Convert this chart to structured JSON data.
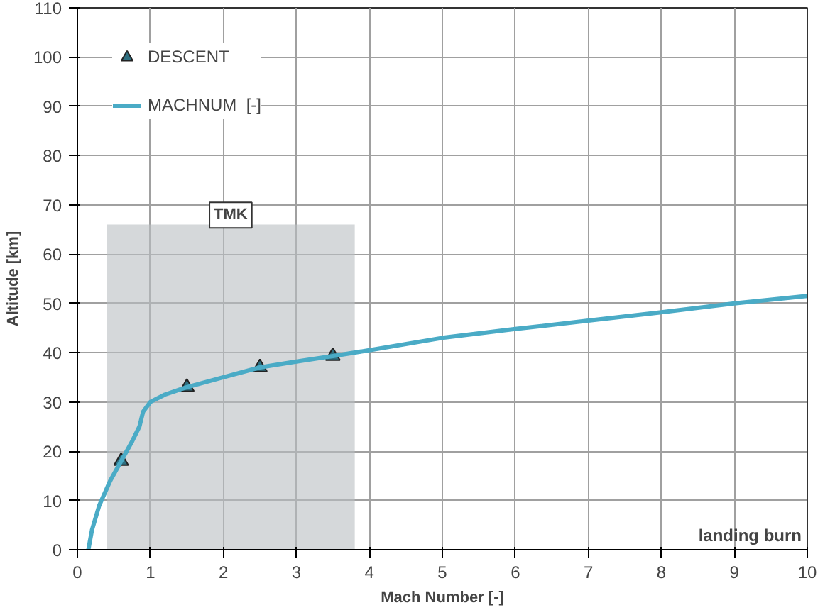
{
  "chart_data": {
    "type": "line",
    "xlabel": "Mach Number [-]",
    "ylabel": "Altitude [km]",
    "xlim": [
      0,
      10
    ],
    "ylim": [
      0,
      110
    ],
    "xticks": [
      0,
      1,
      2,
      3,
      4,
      5,
      6,
      7,
      8,
      9,
      10
    ],
    "yticks": [
      0,
      10,
      20,
      30,
      40,
      50,
      60,
      70,
      80,
      90,
      100,
      110
    ],
    "grid": true,
    "legend": "top left",
    "series": [
      {
        "name": "DESCENT",
        "type": "scatter",
        "marker": "triangle",
        "color": "#2e6f80",
        "x": [
          0.6,
          1.5,
          2.5,
          3.5
        ],
        "values": [
          18,
          33,
          37,
          39.3
        ]
      },
      {
        "name": "MACHNUM  [-]",
        "color": "#4aabc6",
        "line_style": "solid",
        "x": [
          0.15,
          0.2,
          0.3,
          0.45,
          0.6,
          0.75,
          0.85,
          0.9,
          1.0,
          1.2,
          1.5,
          2.0,
          2.5,
          3.0,
          3.5,
          4.0,
          5.0,
          6.0,
          7.0,
          8.0,
          9.0,
          10.0
        ],
        "values": [
          0,
          4,
          9,
          14,
          18,
          22,
          25,
          28,
          30,
          31.5,
          33,
          35,
          37,
          38.2,
          39.3,
          40.5,
          43,
          44.8,
          46.5,
          48.2,
          50,
          51.5
        ]
      }
    ],
    "bands": [
      {
        "axis": "x",
        "from": 0.4,
        "to": 3.8,
        "label": "TMK",
        "color": "#b9bec2"
      }
    ],
    "annotations": [
      "landing burn"
    ]
  }
}
